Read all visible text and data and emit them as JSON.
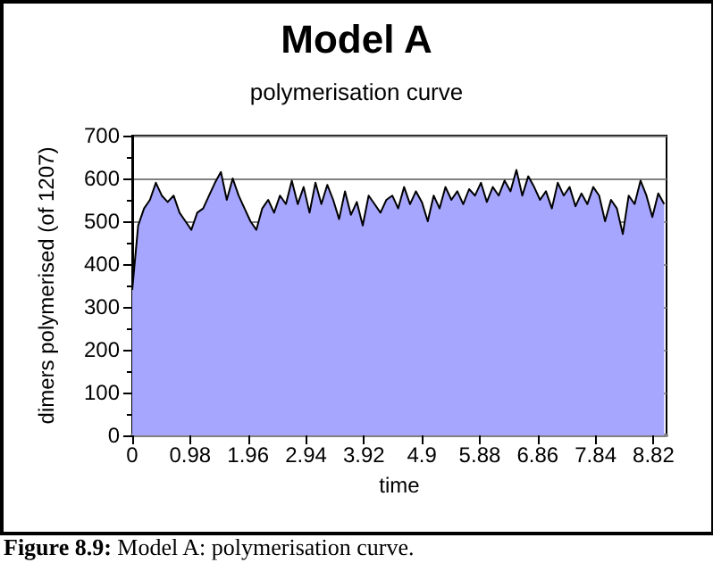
{
  "chart_data": {
    "type": "area",
    "title": "Model A",
    "subtitle": "polymerisation curve",
    "xlabel": "time",
    "ylabel": "dimers polymerised (of 1207)",
    "annotations": [
      "Figure 8.9: Model A: polymerisation curve."
    ],
    "x": [
      0,
      0.1,
      0.2,
      0.3,
      0.4,
      0.5,
      0.6,
      0.7,
      0.8,
      0.9,
      1,
      1.1,
      1.2,
      1.3,
      1.4,
      1.5,
      1.6,
      1.7,
      1.8,
      1.9,
      2,
      2.1,
      2.2,
      2.3,
      2.4,
      2.5,
      2.6,
      2.7,
      2.8,
      2.9,
      3,
      3.1,
      3.2,
      3.3,
      3.4,
      3.5,
      3.6,
      3.7,
      3.8,
      3.9,
      4,
      4.1,
      4.2,
      4.3,
      4.4,
      4.5,
      4.6,
      4.7,
      4.8,
      4.9,
      5,
      5.1,
      5.2,
      5.3,
      5.4,
      5.5,
      5.6,
      5.7,
      5.8,
      5.9,
      6,
      6.1,
      6.2,
      6.3,
      6.4,
      6.5,
      6.6,
      6.7,
      6.8,
      6.9,
      7,
      7.1,
      7.2,
      7.3,
      7.4,
      7.5,
      7.6,
      7.7,
      7.8,
      7.9,
      8,
      8.1,
      8.2,
      8.3,
      8.4,
      8.5,
      8.6,
      8.7,
      8.8,
      8.9,
      9
    ],
    "series": [
      {
        "color": "#a6a6ff",
        "values": [
          340,
          490,
          530,
          550,
          590,
          560,
          545,
          560,
          520,
          500,
          480,
          520,
          530,
          560,
          590,
          615,
          550,
          600,
          560,
          530,
          500,
          480,
          530,
          550,
          520,
          560,
          540,
          595,
          540,
          580,
          520,
          590,
          540,
          585,
          550,
          505,
          570,
          515,
          545,
          490,
          560,
          540,
          520,
          550,
          560,
          530,
          580,
          540,
          570,
          545,
          500,
          560,
          530,
          580,
          550,
          570,
          540,
          575,
          560,
          590,
          545,
          580,
          560,
          595,
          570,
          620,
          560,
          605,
          580,
          550,
          570,
          530,
          590,
          560,
          580,
          535,
          565,
          540,
          580,
          560,
          500,
          550,
          530,
          470,
          560,
          540,
          595,
          560,
          510,
          565,
          540
        ]
      }
    ],
    "xlim": [
      0,
      9.04
    ],
    "xticks": [
      0,
      0.98,
      1.96,
      2.94,
      3.92,
      4.9,
      5.88,
      6.86,
      7.84,
      8.82
    ],
    "ylim": [
      0,
      700
    ],
    "yticks": [
      0,
      100,
      200,
      300,
      400,
      500,
      600,
      700
    ],
    "grid": "y",
    "marker": "none",
    "line_style": "solid"
  }
}
